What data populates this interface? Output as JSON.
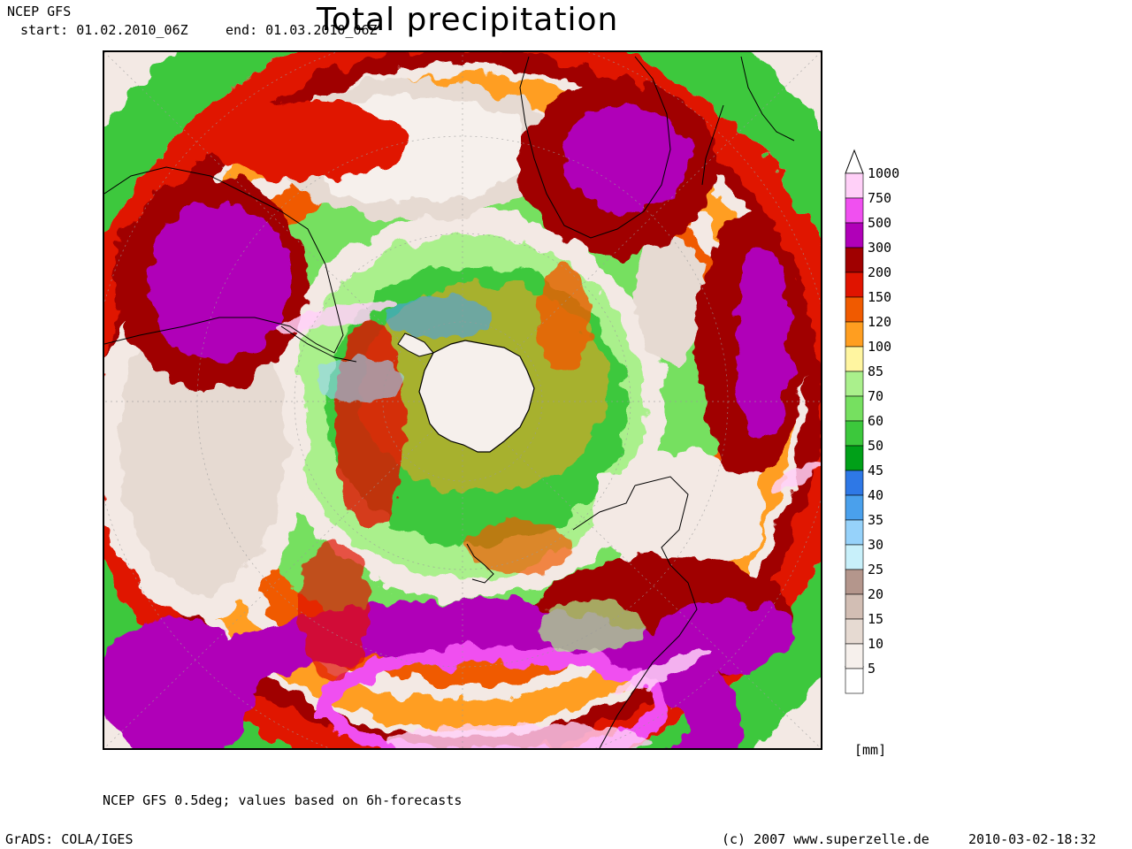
{
  "header": {
    "model": "NCEP GFS",
    "start": "start: 01.02.2010_06Z",
    "end": "end: 01.03.2010_06Z",
    "title": "Total precipitation"
  },
  "map": {
    "projection": "south polar stereographic",
    "background_color": "#f3e9e4",
    "coastline_color": "#000000"
  },
  "legend": {
    "unit": "[mm]",
    "levels": [
      {
        "label": "1000",
        "color": "#ffd0f8"
      },
      {
        "label": "750",
        "color": "#f050f0"
      },
      {
        "label": "500",
        "color": "#b000b8"
      },
      {
        "label": "300",
        "color": "#a00000"
      },
      {
        "label": "200",
        "color": "#e01400"
      },
      {
        "label": "150",
        "color": "#f05a00"
      },
      {
        "label": "120",
        "color": "#ff9e20"
      },
      {
        "label": "100",
        "color": "#fff5a0"
      },
      {
        "label": "85",
        "color": "#aaf08c"
      },
      {
        "label": "70",
        "color": "#76e060"
      },
      {
        "label": "60",
        "color": "#3cc83c"
      },
      {
        "label": "50",
        "color": "#00a018"
      },
      {
        "label": "45",
        "color": "#2e78e6"
      },
      {
        "label": "40",
        "color": "#4aa0ec"
      },
      {
        "label": "35",
        "color": "#96d2fa"
      },
      {
        "label": "30",
        "color": "#c8f0fa"
      },
      {
        "label": "25",
        "color": "#b4968c"
      },
      {
        "label": "20",
        "color": "#d2beb4"
      },
      {
        "label": "15",
        "color": "#e6dad2"
      },
      {
        "label": "10",
        "color": "#f6f0ec"
      },
      {
        "label": "5",
        "color": "#ffffff"
      }
    ]
  },
  "footer": {
    "note": "NCEP GFS 0.5deg; values based on 6h-forecasts",
    "grads": "GrADS: COLA/IGES",
    "site": "(c) 2007 www.superzelle.de",
    "timestamp": "2010-03-02-18:32"
  }
}
